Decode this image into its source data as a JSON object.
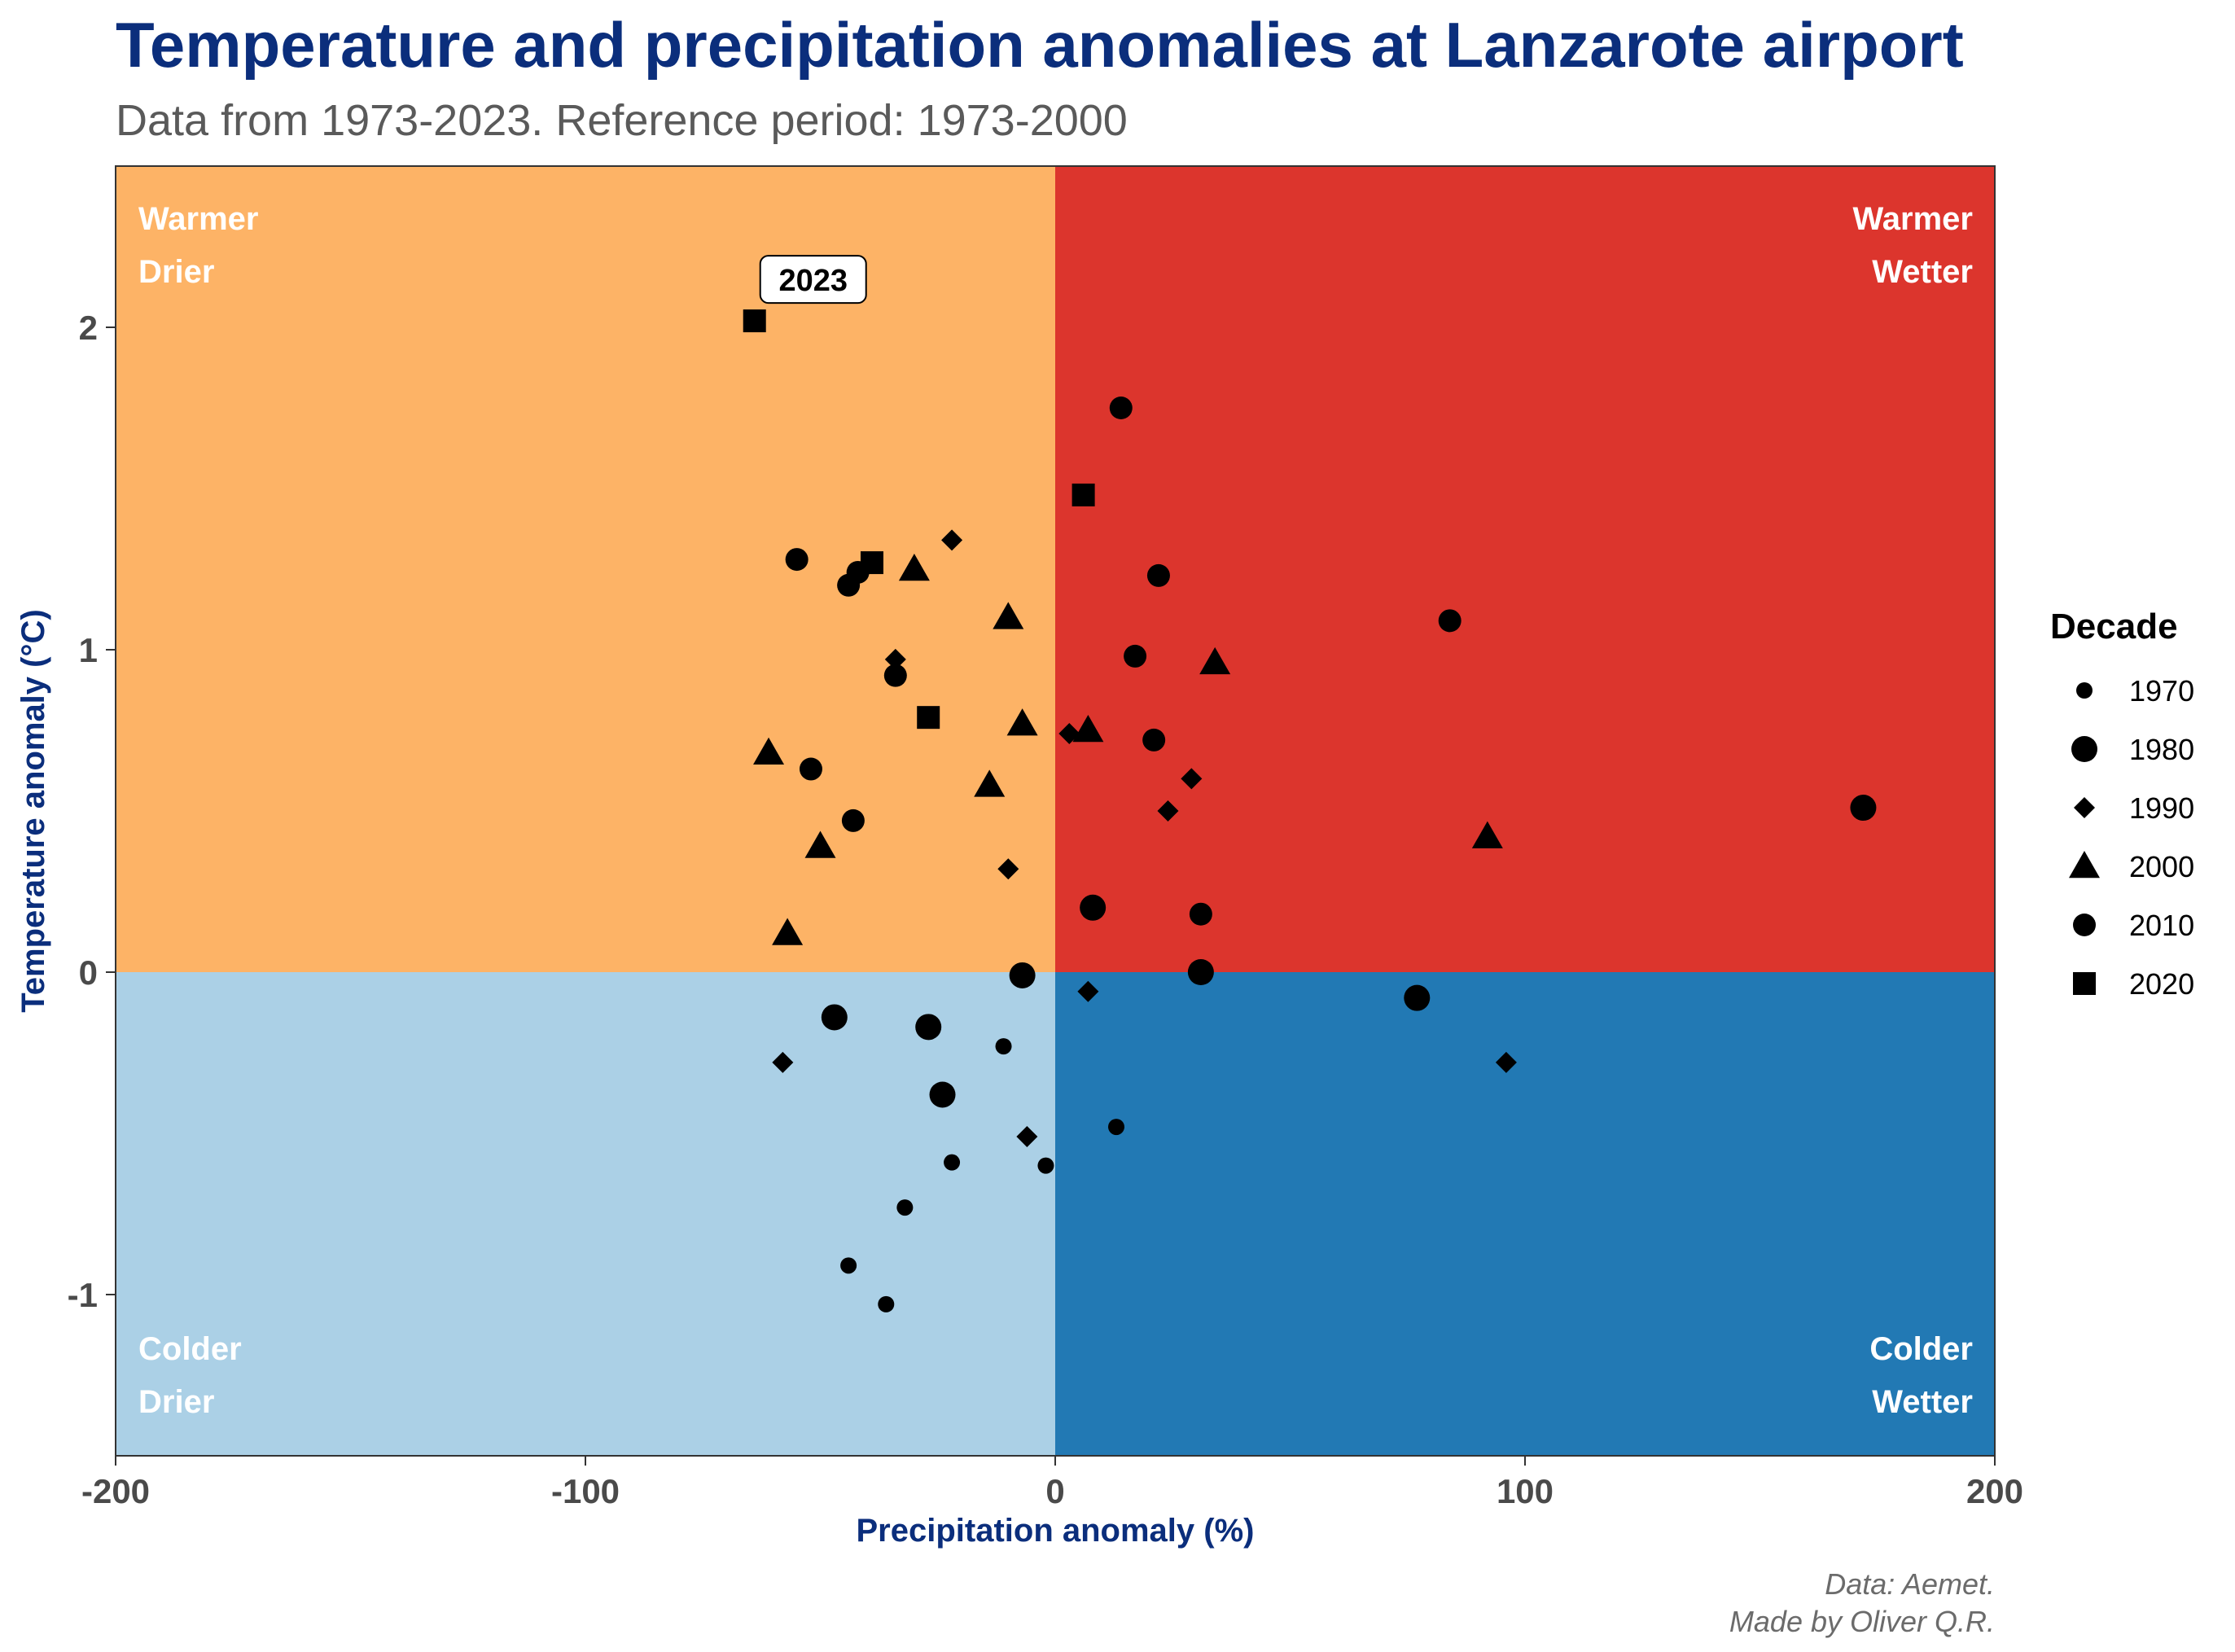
{
  "header": {
    "title": "Temperature and precipitation anomalies at Lanzarote airport",
    "subtitle": "Data from 1973-2023. Reference period: 1973-2000"
  },
  "caption": {
    "line1": "Data: Aemet.",
    "line2": "Made by Oliver Q.R."
  },
  "colors": {
    "warmer_drier": "#fdb366",
    "warmer_wetter": "#dc352d",
    "colder_drier": "#abd0e6",
    "colder_wetter": "#2279b4",
    "title": "#0b2e7c",
    "points": "#000000"
  },
  "chart_data": {
    "type": "scatter",
    "title": "Temperature and precipitation anomalies at Lanzarote airport",
    "subtitle": "Data from 1973-2023. Reference period: 1973-2000",
    "xlabel": "Precipitation anomaly (%)",
    "ylabel": "Temperature anomaly (°C)",
    "xlim": [
      -200,
      200
    ],
    "ylim": [
      -1.5,
      2.5
    ],
    "xticks": [
      -200,
      -100,
      0,
      100,
      200
    ],
    "yticks": [
      -1,
      0,
      1,
      2
    ],
    "grid": false,
    "legend": {
      "title": "Decade",
      "placement": "right"
    },
    "quadrants": {
      "top_left": [
        "Warmer",
        "Drier"
      ],
      "top_right": [
        "Warmer",
        "Wetter"
      ],
      "bottom_left": [
        "Colder",
        "Drier"
      ],
      "bottom_right": [
        "Colder",
        "Wetter"
      ]
    },
    "annotation": {
      "label": "2023",
      "x": -64,
      "y": 2.02
    },
    "series": [
      {
        "name": "1970",
        "shape": "circle-small",
        "points": [
          {
            "x": -11,
            "y": -0.23
          },
          {
            "x": 13,
            "y": -0.48
          },
          {
            "x": -22,
            "y": -0.59
          },
          {
            "x": -2,
            "y": -0.6
          },
          {
            "x": -32,
            "y": -0.73
          },
          {
            "x": -44,
            "y": -0.91
          },
          {
            "x": -36,
            "y": -1.03
          }
        ]
      },
      {
        "name": "1980",
        "shape": "circle-large",
        "points": [
          {
            "x": 172,
            "y": 0.51
          },
          {
            "x": 8,
            "y": 0.2
          },
          {
            "x": -7,
            "y": -0.01
          },
          {
            "x": 31,
            "y": 0.0
          },
          {
            "x": 77,
            "y": -0.08
          },
          {
            "x": -47,
            "y": -0.14
          },
          {
            "x": -27,
            "y": -0.17
          },
          {
            "x": -24,
            "y": -0.38
          }
        ]
      },
      {
        "name": "1990",
        "shape": "diamond",
        "points": [
          {
            "x": -22,
            "y": 1.34
          },
          {
            "x": -34,
            "y": 0.97
          },
          {
            "x": 3,
            "y": 0.74
          },
          {
            "x": 29,
            "y": 0.6
          },
          {
            "x": 24,
            "y": 0.5
          },
          {
            "x": -10,
            "y": 0.32
          },
          {
            "x": 7,
            "y": -0.06
          },
          {
            "x": 96,
            "y": -0.28
          },
          {
            "x": -58,
            "y": -0.28
          },
          {
            "x": -6,
            "y": -0.51
          }
        ]
      },
      {
        "name": "2000",
        "shape": "triangle",
        "points": [
          {
            "x": -30,
            "y": 1.25
          },
          {
            "x": -10,
            "y": 1.1
          },
          {
            "x": 34,
            "y": 0.96
          },
          {
            "x": -7,
            "y": 0.77
          },
          {
            "x": 7,
            "y": 0.75
          },
          {
            "x": -61,
            "y": 0.68
          },
          {
            "x": -14,
            "y": 0.58
          },
          {
            "x": 92,
            "y": 0.42
          },
          {
            "x": -50,
            "y": 0.39
          },
          {
            "x": -57,
            "y": 0.12
          }
        ]
      },
      {
        "name": "2010",
        "shape": "circle-medium",
        "points": [
          {
            "x": 14,
            "y": 1.75
          },
          {
            "x": -55,
            "y": 1.28
          },
          {
            "x": -42,
            "y": 1.24
          },
          {
            "x": -44,
            "y": 1.2
          },
          {
            "x": 22,
            "y": 1.23
          },
          {
            "x": 84,
            "y": 1.09
          },
          {
            "x": 17,
            "y": 0.98
          },
          {
            "x": -34,
            "y": 0.92
          },
          {
            "x": 21,
            "y": 0.72
          },
          {
            "x": -52,
            "y": 0.63
          },
          {
            "x": -43,
            "y": 0.47
          },
          {
            "x": 31,
            "y": 0.18
          }
        ]
      },
      {
        "name": "2020",
        "shape": "square",
        "points": [
          {
            "x": -64,
            "y": 2.02
          },
          {
            "x": 6,
            "y": 1.48
          },
          {
            "x": -39,
            "y": 1.27
          },
          {
            "x": -27,
            "y": 0.79
          }
        ]
      }
    ]
  }
}
